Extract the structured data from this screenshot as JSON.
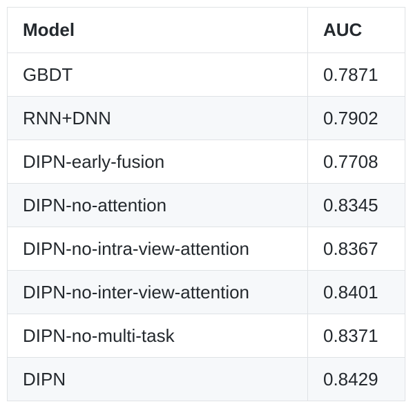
{
  "table": {
    "headers": {
      "model": "Model",
      "auc": "AUC"
    },
    "rows": [
      {
        "model": "GBDT",
        "auc": "0.7871"
      },
      {
        "model": "RNN+DNN",
        "auc": "0.7902"
      },
      {
        "model": "DIPN-early-fusion",
        "auc": "0.7708"
      },
      {
        "model": "DIPN-no-attention",
        "auc": "0.8345"
      },
      {
        "model": "DIPN-no-intra-view-attention",
        "auc": "0.8367"
      },
      {
        "model": "DIPN-no-inter-view-attention",
        "auc": "0.8401"
      },
      {
        "model": "DIPN-no-multi-task",
        "auc": "0.8371"
      },
      {
        "model": "DIPN",
        "auc": "0.8429"
      }
    ]
  },
  "colors": {
    "border": "#dfe2e5",
    "stripe": "#f6f8fa",
    "text": "#24292e"
  }
}
